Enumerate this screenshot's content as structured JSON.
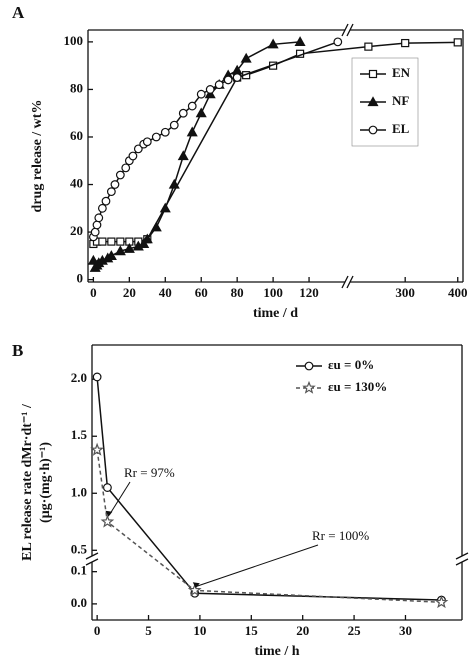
{
  "chart_data": [
    {
      "type": "line",
      "label": "A",
      "xlabel": "time / d",
      "ylabel": "drug release / wt%",
      "xlim": [
        -3,
        410
      ],
      "xbreak": [
        140,
        195
      ],
      "ylim": [
        -1,
        105
      ],
      "xticks": [
        0,
        20,
        40,
        60,
        80,
        100,
        120,
        300,
        400
      ],
      "yticks": [
        0,
        20,
        40,
        60,
        80,
        100
      ],
      "legend": "right",
      "series": [
        {
          "name": "EN",
          "color": "#111111",
          "marker": "square",
          "linestyle": "solid",
          "x": [
            0,
            2,
            5,
            10,
            15,
            20,
            25,
            30,
            80,
            85,
            100,
            115,
            230,
            300,
            400
          ],
          "values": [
            15,
            16,
            16,
            16,
            16,
            16,
            16,
            17,
            85,
            86,
            90,
            95,
            98,
            99.5,
            99.8
          ]
        },
        {
          "name": "NF",
          "color": "#111111",
          "marker": "triangle",
          "linestyle": "solid",
          "x": [
            0,
            1,
            2,
            3,
            5,
            8,
            10,
            15,
            20,
            25,
            28,
            30,
            35,
            40,
            45,
            50,
            55,
            60,
            65,
            70,
            75,
            80,
            85,
            100,
            115
          ],
          "values": [
            8,
            5,
            6,
            7,
            8,
            9,
            10,
            12,
            13,
            14,
            15,
            17,
            22,
            30,
            40,
            52,
            62,
            70,
            78,
            82,
            86,
            88,
            93,
            99,
            100
          ]
        },
        {
          "name": "EL",
          "color": "#111111",
          "marker": "circle",
          "linestyle": "solid",
          "x": [
            0,
            1,
            2,
            3,
            5,
            7,
            10,
            12,
            15,
            18,
            20,
            22,
            25,
            28,
            30,
            35,
            40,
            45,
            50,
            55,
            60,
            65,
            70,
            75,
            80,
            136
          ],
          "values": [
            18,
            20,
            23,
            26,
            30,
            33,
            37,
            40,
            44,
            47,
            50,
            52,
            55,
            57,
            58,
            60,
            62,
            65,
            70,
            73,
            78,
            80,
            82,
            84,
            85,
            100
          ]
        }
      ]
    },
    {
      "type": "line",
      "label": "B",
      "xlabel": "time / h",
      "ylabel": [
        "EL release rate dMr·dt⁻¹ /",
        "(µg·(mg·h)⁻¹)"
      ],
      "xlim": [
        -0.5,
        35.5
      ],
      "ylim": [
        -0.05,
        2.3
      ],
      "ybreak": [
        0.13,
        0.45
      ],
      "xticks": [
        0,
        5,
        10,
        15,
        20,
        25,
        30
      ],
      "yticks": [
        {
          "value": 0,
          "label": "0.0"
        },
        0.1,
        0.5,
        {
          "value": 1,
          "label": "1.0"
        },
        1.5,
        {
          "value": 2,
          "label": "2.0"
        }
      ],
      "legend": "upper right",
      "annotations": [
        "Rr = 97%",
        "Rr = 100%"
      ],
      "series": [
        {
          "name": "εu = 0%",
          "color": "#111111",
          "marker": "circle",
          "linestyle": "solid",
          "x": [
            0,
            1,
            9.5,
            33.5
          ],
          "values": [
            2.02,
            1.05,
            0.033,
            0.012
          ]
        },
        {
          "name": "εu = 130%",
          "color": "#555555",
          "marker": "star",
          "linestyle": "dashed",
          "x": [
            0,
            1,
            9.5,
            33.5
          ],
          "values": [
            1.38,
            0.75,
            0.042,
            0.005
          ]
        }
      ]
    }
  ]
}
